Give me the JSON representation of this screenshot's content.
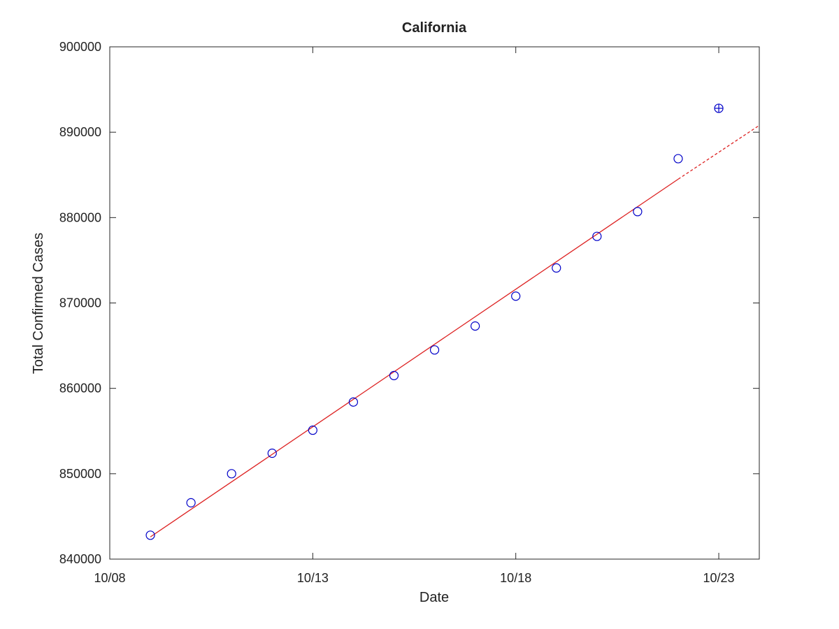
{
  "chart_data": {
    "type": "scatter",
    "title": "California",
    "xlabel": "Date",
    "ylabel": "Total Confirmed Cases",
    "x_tick_labels": [
      "10/08",
      "10/13",
      "10/18",
      "10/23"
    ],
    "y_tick_labels": [
      "840000",
      "850000",
      "860000",
      "870000",
      "880000",
      "890000",
      "900000"
    ],
    "xlim": [
      "10/08",
      "10/24"
    ],
    "ylim": [
      840000,
      900000
    ],
    "grid": false,
    "series": [
      {
        "kind": "observed",
        "marker": "circle",
        "color": "#0000c8",
        "points": [
          {
            "x": "10/09",
            "y": 842800
          },
          {
            "x": "10/10",
            "y": 846600
          },
          {
            "x": "10/11",
            "y": 850000
          },
          {
            "x": "10/12",
            "y": 852400
          },
          {
            "x": "10/13",
            "y": 855100
          },
          {
            "x": "10/14",
            "y": 858400
          },
          {
            "x": "10/15",
            "y": 861500
          },
          {
            "x": "10/16",
            "y": 864500
          },
          {
            "x": "10/17",
            "y": 867300
          },
          {
            "x": "10/18",
            "y": 870800
          },
          {
            "x": "10/19",
            "y": 874100
          },
          {
            "x": "10/20",
            "y": 877800
          },
          {
            "x": "10/21",
            "y": 880700
          },
          {
            "x": "10/22",
            "y": 886900
          }
        ]
      },
      {
        "kind": "highlighted",
        "marker": "circle-plus",
        "color": "#0000c8",
        "points": [
          {
            "x": "10/23",
            "y": 892800
          }
        ]
      },
      {
        "kind": "fit",
        "style": "solid",
        "color": "#dd2222",
        "points": [
          {
            "x": "10/09",
            "y": 842600
          },
          {
            "x": "10/22",
            "y": 884500
          }
        ]
      },
      {
        "kind": "projection",
        "style": "dashed",
        "color": "#dd2222",
        "points": [
          {
            "x": "10/22",
            "y": 884500
          },
          {
            "x": "10/24",
            "y": 890800
          }
        ]
      }
    ]
  }
}
